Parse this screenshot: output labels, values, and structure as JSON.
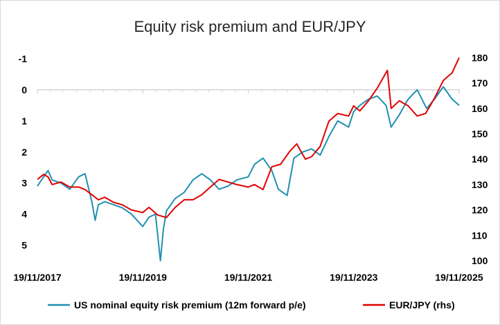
{
  "chart_data": {
    "type": "line",
    "title": "Equity risk premium and EUR/JPY",
    "xlabel": "",
    "ylabel": "",
    "x_ticks": [
      "19/11/2017",
      "19/11/2019",
      "19/11/2021",
      "19/11/2023",
      "19/11/2025"
    ],
    "xlim": [
      "2017-11-19",
      "2025-11-19"
    ],
    "y_left": {
      "lim": [
        5.5,
        -1.2
      ],
      "inverted": true,
      "ticks": [
        -1,
        0,
        1,
        2,
        3,
        4,
        5
      ]
    },
    "y_right": {
      "lim": [
        100,
        182
      ],
      "ticks": [
        100,
        110,
        120,
        130,
        140,
        150,
        160,
        170,
        180
      ]
    },
    "grid": false,
    "legend_position": "bottom",
    "series": [
      {
        "name": "US nominal equity risk premium (12m forward p/e)",
        "axis": "left",
        "color": "#1f8fb0",
        "x": [
          "2017-11-19",
          "2018-01-01",
          "2018-02-01",
          "2018-03-01",
          "2018-05-01",
          "2018-07-01",
          "2018-09-01",
          "2018-10-15",
          "2018-12-01",
          "2018-12-24",
          "2019-01-15",
          "2019-03-01",
          "2019-05-01",
          "2019-07-01",
          "2019-09-01",
          "2019-11-19",
          "2020-01-01",
          "2020-02-15",
          "2020-03-20",
          "2020-04-10",
          "2020-05-01",
          "2020-07-01",
          "2020-09-01",
          "2020-11-01",
          "2021-01-01",
          "2021-03-01",
          "2021-05-01",
          "2021-07-01",
          "2021-09-01",
          "2021-11-19",
          "2022-01-01",
          "2022-03-01",
          "2022-05-01",
          "2022-06-15",
          "2022-08-15",
          "2022-10-01",
          "2022-12-01",
          "2023-02-01",
          "2023-04-01",
          "2023-06-01",
          "2023-08-01",
          "2023-10-15",
          "2023-11-19",
          "2024-01-01",
          "2024-03-01",
          "2024-05-01",
          "2024-07-01",
          "2024-08-05",
          "2024-10-01",
          "2024-12-01",
          "2025-02-01",
          "2025-04-08",
          "2025-06-01",
          "2025-08-01",
          "2025-10-01",
          "2025-11-19"
        ],
        "values": [
          3.1,
          2.8,
          2.6,
          2.9,
          3.0,
          3.2,
          2.8,
          2.7,
          3.6,
          4.2,
          3.7,
          3.6,
          3.7,
          3.8,
          4.0,
          4.4,
          4.1,
          4.0,
          5.6,
          4.5,
          3.9,
          3.5,
          3.3,
          2.9,
          2.7,
          2.9,
          3.2,
          3.1,
          2.9,
          2.8,
          2.4,
          2.2,
          2.6,
          3.2,
          3.4,
          2.2,
          2.0,
          1.9,
          2.1,
          1.5,
          1.0,
          1.2,
          0.7,
          0.5,
          0.3,
          0.2,
          0.5,
          1.2,
          0.8,
          0.3,
          0.0,
          0.6,
          0.3,
          -0.1,
          0.3,
          0.5
        ]
      },
      {
        "name": "EUR/JPY (rhs)",
        "axis": "right",
        "color": "#e00000",
        "x": [
          "2017-11-19",
          "2018-01-01",
          "2018-02-01",
          "2018-03-01",
          "2018-05-01",
          "2018-07-01",
          "2018-09-01",
          "2018-10-15",
          "2018-12-01",
          "2019-01-15",
          "2019-03-01",
          "2019-05-01",
          "2019-07-01",
          "2019-09-01",
          "2019-11-19",
          "2020-01-01",
          "2020-03-01",
          "2020-05-01",
          "2020-07-01",
          "2020-09-01",
          "2020-11-01",
          "2021-01-01",
          "2021-03-01",
          "2021-05-01",
          "2021-07-01",
          "2021-09-01",
          "2021-11-19",
          "2022-01-01",
          "2022-03-01",
          "2022-05-01",
          "2022-07-01",
          "2022-09-01",
          "2022-10-21",
          "2022-12-20",
          "2023-02-01",
          "2023-04-01",
          "2023-06-01",
          "2023-08-01",
          "2023-10-15",
          "2023-11-19",
          "2024-01-01",
          "2024-03-01",
          "2024-05-01",
          "2024-07-10",
          "2024-08-05",
          "2024-10-01",
          "2024-12-01",
          "2025-02-01",
          "2025-04-01",
          "2025-06-01",
          "2025-08-01",
          "2025-10-01",
          "2025-11-19"
        ],
        "values": [
          132,
          134,
          133,
          130,
          131,
          129,
          129,
          128,
          126,
          124,
          125,
          123,
          122,
          120,
          119,
          121,
          118,
          117,
          121,
          124,
          124,
          126,
          129,
          132,
          131,
          130,
          129,
          130,
          128,
          137,
          138,
          143,
          146,
          140,
          141,
          145,
          155,
          158,
          157,
          161,
          159,
          163,
          168,
          175,
          160,
          163,
          161,
          157,
          158,
          164,
          171,
          174,
          180
        ]
      }
    ]
  }
}
